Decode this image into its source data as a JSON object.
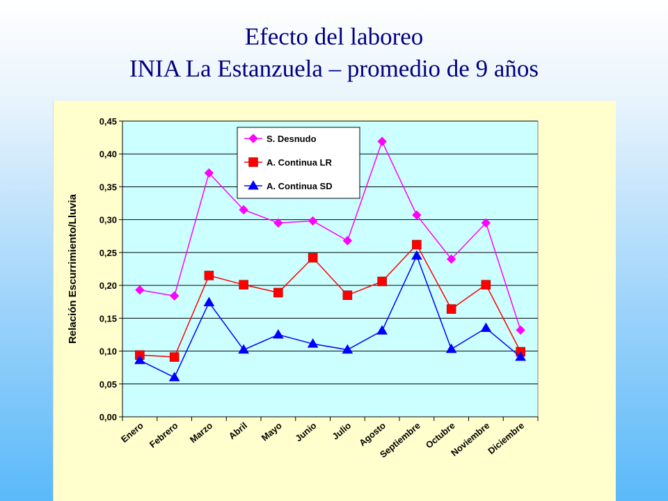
{
  "slide": {
    "title_line1": "Efecto del laboreo",
    "title_line2": "INIA La Estanzuela – promedio de 9 años"
  },
  "chart_data": {
    "type": "line",
    "title": "",
    "xlabel": "",
    "ylabel": "Relación Escurrimiento/Lluvia",
    "ylim": [
      0,
      0.45
    ],
    "ytick_labels": [
      "0,00",
      "0,05",
      "0,10",
      "0,15",
      "0,20",
      "0,25",
      "0,30",
      "0,35",
      "0,40",
      "0,45"
    ],
    "grid": true,
    "legend_position": "top-center",
    "categories": [
      "Enero",
      "Febrero",
      "Marzo",
      "Abril",
      "Mayo",
      "Junio",
      "Julio",
      "Agosto",
      "Septiembre",
      "Octubre",
      "Noviembre",
      "Diciembre"
    ],
    "series": [
      {
        "name": "S. Desnudo",
        "color": "#ff00ff",
        "marker": "diamond",
        "values": [
          0.193,
          0.184,
          0.371,
          0.315,
          0.295,
          0.298,
          0.268,
          0.419,
          0.307,
          0.24,
          0.295,
          0.132
        ]
      },
      {
        "name": "A. Continua LR",
        "color": "#ff0000",
        "marker": "square",
        "values": [
          0.094,
          0.091,
          0.215,
          0.201,
          0.189,
          0.242,
          0.185,
          0.206,
          0.262,
          0.164,
          0.201,
          0.099
        ]
      },
      {
        "name": "A. Continua SD",
        "color": "#0000ff",
        "marker": "triangle",
        "values": [
          0.086,
          0.06,
          0.174,
          0.102,
          0.125,
          0.111,
          0.102,
          0.131,
          0.245,
          0.103,
          0.135,
          0.091
        ]
      }
    ],
    "colors": {
      "plot_background": "#ccffff",
      "panel_background": "#fffecc",
      "gridline": "#000000"
    }
  }
}
